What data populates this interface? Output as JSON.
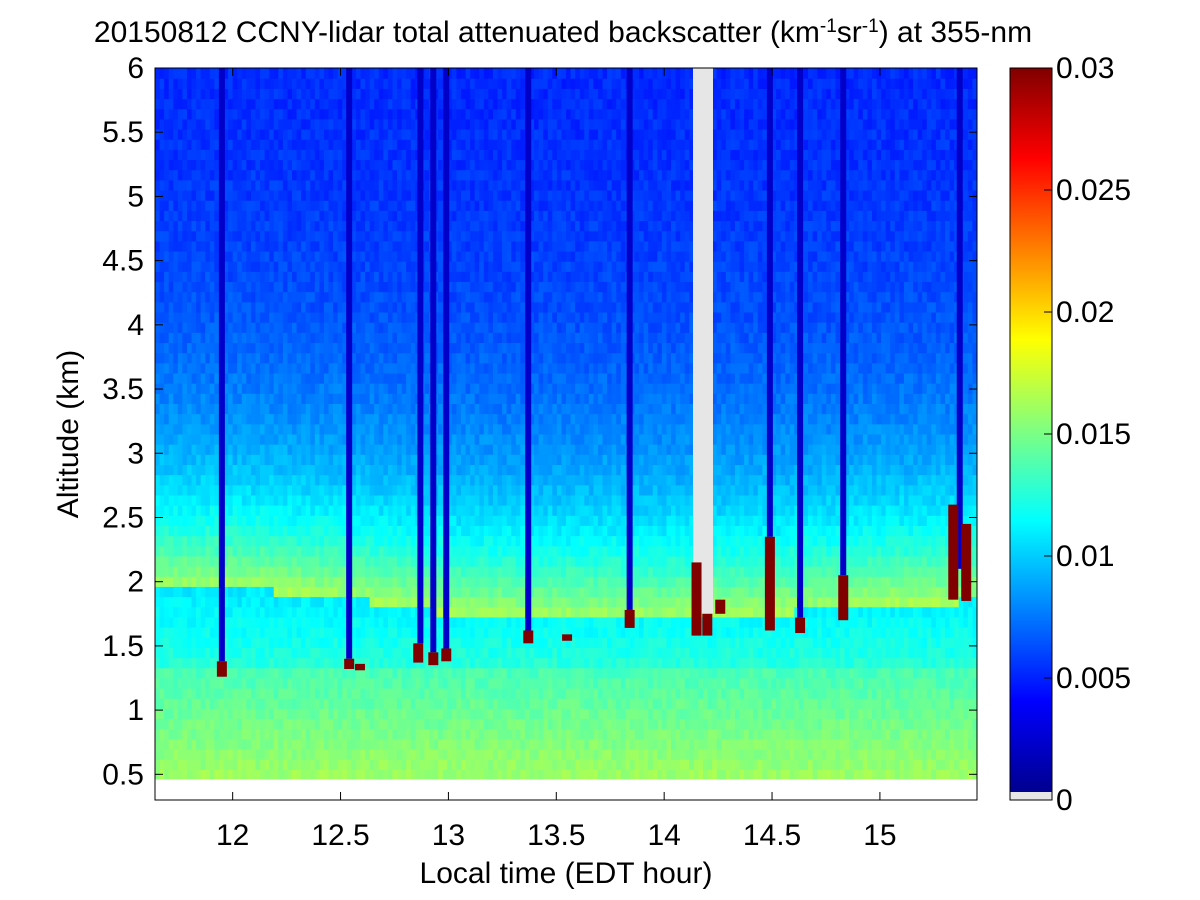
{
  "chart_data": {
    "type": "heatmap",
    "title": "20150812 CCNY-lidar total attenuated backscatter (km-1sr-1) at 355-nm",
    "title_parts": {
      "pre": "20150812 CCNY-lidar total attenuated backscatter (km",
      "sup1": "-1",
      "mid": "sr",
      "sup2": "-1",
      "post": ") at 355-nm"
    },
    "xlabel": "Local time (EDT hour)",
    "ylabel": "Altitude (km)",
    "xlim": [
      11.64,
      15.45
    ],
    "ylim": [
      0.3,
      6.0
    ],
    "xticks": [
      12,
      12.5,
      13,
      13.5,
      14,
      14.5,
      15
    ],
    "xtick_labels": [
      "12",
      "12.5",
      "13",
      "13.5",
      "14",
      "14.5",
      "15"
    ],
    "yticks": [
      0.5,
      1,
      1.5,
      2,
      2.5,
      3,
      3.5,
      4,
      4.5,
      5,
      5.5,
      6
    ],
    "ytick_labels": [
      "0.5",
      "1",
      "1.5",
      "2",
      "2.5",
      "3",
      "3.5",
      "4",
      "4.5",
      "5",
      "5.5",
      "6"
    ],
    "data_floor_km": 0.46,
    "colorbar": {
      "colormap": "jet",
      "range": [
        0,
        0.03
      ],
      "ticks": [
        0,
        0.005,
        0.01,
        0.015,
        0.02,
        0.025,
        0.03
      ],
      "tick_labels": [
        "0",
        "0.005",
        "0.01",
        "0.015",
        "0.02",
        "0.025",
        "0.03"
      ],
      "missing_color": "#e6e6e6"
    },
    "boundary_layer_top_km": [
      [
        11.64,
        1.95
      ],
      [
        12.0,
        1.95
      ],
      [
        12.5,
        1.88
      ],
      [
        13.0,
        1.75
      ],
      [
        13.5,
        1.72
      ],
      [
        14.0,
        1.72
      ],
      [
        14.5,
        1.75
      ],
      [
        15.0,
        1.82
      ],
      [
        15.45,
        1.85
      ]
    ],
    "cloud_events": [
      {
        "time": 11.95,
        "base_km": 1.26,
        "top_km": 1.38
      },
      {
        "time": 12.54,
        "base_km": 1.32,
        "top_km": 1.4
      },
      {
        "time": 12.59,
        "base_km": 1.31,
        "top_km": 1.36
      },
      {
        "time": 12.86,
        "base_km": 1.37,
        "top_km": 1.52
      },
      {
        "time": 12.93,
        "base_km": 1.35,
        "top_km": 1.45
      },
      {
        "time": 12.99,
        "base_km": 1.38,
        "top_km": 1.48
      },
      {
        "time": 13.37,
        "base_km": 1.52,
        "top_km": 1.62
      },
      {
        "time": 13.55,
        "base_km": 1.54,
        "top_km": 1.59
      },
      {
        "time": 13.84,
        "base_km": 1.64,
        "top_km": 1.78
      },
      {
        "time": 14.15,
        "base_km": 1.58,
        "top_km": 2.15
      },
      {
        "time": 14.2,
        "base_km": 1.58,
        "top_km": 1.75
      },
      {
        "time": 14.26,
        "base_km": 1.75,
        "top_km": 1.86
      },
      {
        "time": 14.49,
        "base_km": 1.62,
        "top_km": 2.35
      },
      {
        "time": 14.63,
        "base_km": 1.6,
        "top_km": 1.72
      },
      {
        "time": 14.83,
        "base_km": 1.7,
        "top_km": 2.05
      },
      {
        "time": 15.34,
        "base_km": 1.86,
        "top_km": 2.6
      },
      {
        "time": 15.4,
        "base_km": 1.85,
        "top_km": 2.45
      }
    ],
    "attenuated_columns": [
      {
        "time": 11.95,
        "from_km": 1.38
      },
      {
        "time": 12.54,
        "from_km": 1.4
      },
      {
        "time": 12.87,
        "from_km": 1.52
      },
      {
        "time": 12.93,
        "from_km": 1.45
      },
      {
        "time": 12.99,
        "from_km": 1.48
      },
      {
        "time": 13.37,
        "from_km": 1.62
      },
      {
        "time": 13.84,
        "from_km": 1.78
      },
      {
        "time": 14.18,
        "from_km": 1.75
      },
      {
        "time": 14.49,
        "from_km": 2.35
      },
      {
        "time": 14.63,
        "from_km": 1.72
      },
      {
        "time": 14.83,
        "from_km": 2.05
      },
      {
        "time": 15.37,
        "from_km": 2.1
      }
    ]
  }
}
